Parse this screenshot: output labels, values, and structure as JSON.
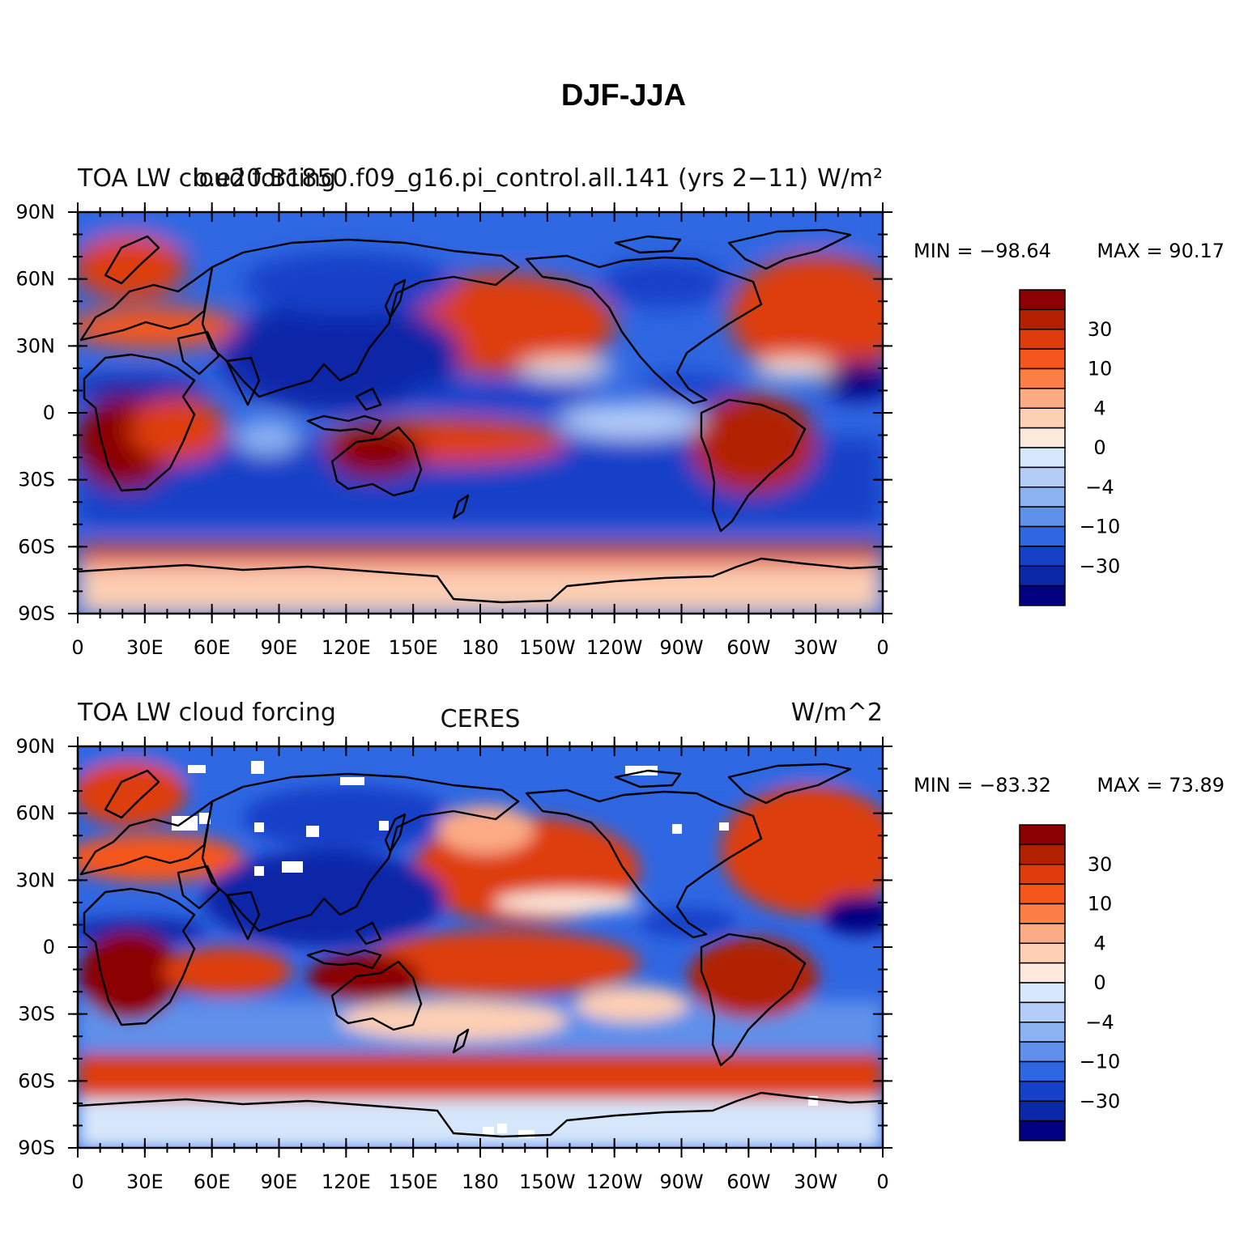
{
  "figure": {
    "title": "DJF-JJA",
    "y_ticks": [
      "90N",
      "60N",
      "30N",
      "0",
      "30S",
      "60S",
      "90S"
    ],
    "x_ticks": [
      "0",
      "30E",
      "60E",
      "90E",
      "120E",
      "150E",
      "180",
      "150W",
      "120W",
      "90W",
      "60W",
      "30W",
      "0"
    ],
    "colorbar": {
      "labels": [
        "30",
        "10",
        "4",
        "0",
        "−4",
        "−10",
        "−30"
      ],
      "colors": [
        "#8b0000",
        "#b22000",
        "#de3c0c",
        "#f4561c",
        "#fb7e45",
        "#fcab85",
        "#fdcfb4",
        "#fde9dc",
        "#d6e7fb",
        "#b4cdf8",
        "#8db2f2",
        "#5f90ea",
        "#2f67e2",
        "#1740c8",
        "#0a28a8",
        "#000080"
      ]
    }
  },
  "panels": [
    {
      "left_title": "TOA LW cloud forcing",
      "center_title": "b.e20.B1850.f09_g16.pi_control.all.141 (yrs 2−11)",
      "right_title": "W/m²",
      "min_label": "MIN = −98.64",
      "max_label": "MAX =  90.17"
    },
    {
      "left_title": "TOA LW cloud forcing",
      "center_title": "CERES",
      "right_title": "W/m^2",
      "min_label": "MIN = −83.32",
      "max_label": "MAX =  73.89"
    }
  ]
}
